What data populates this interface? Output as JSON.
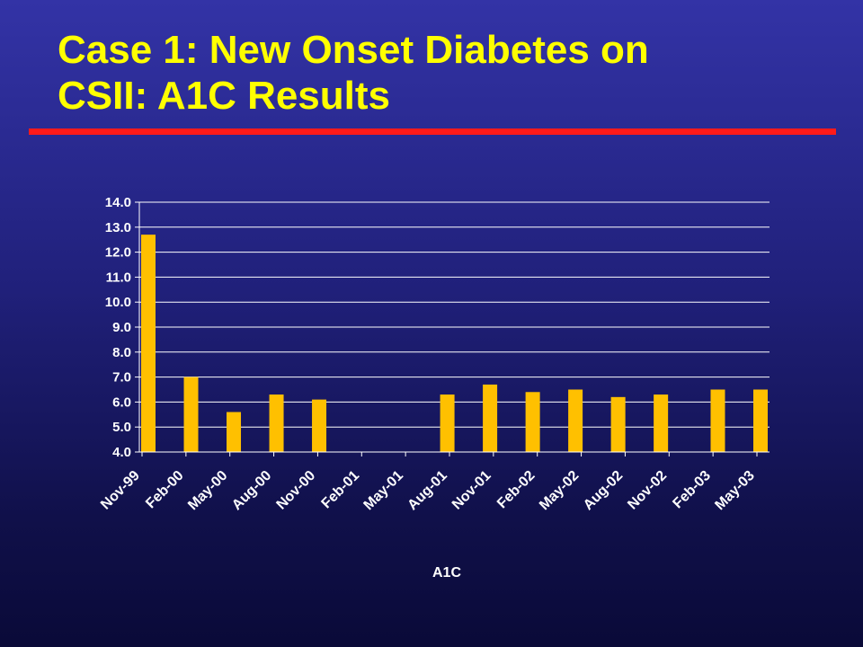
{
  "slide": {
    "title_line1": "Case 1: New Onset Diabetes on",
    "title_line2": "CSII: A1C Results"
  },
  "colors": {
    "title": "#ffff00",
    "rule": "#ff1a1a",
    "bar": "#ffc000",
    "grid": "#ffffff"
  },
  "chart_data": {
    "type": "bar",
    "categories": [
      "Nov-99",
      "Feb-00",
      "May-00",
      "Aug-00",
      "Nov-00",
      "Feb-01",
      "May-01",
      "Aug-01",
      "Nov-01",
      "Feb-02",
      "May-02",
      "Aug-02",
      "Nov-02",
      "Feb-03",
      "May-03"
    ],
    "series": [
      {
        "name": "A1C",
        "points": [
          {
            "x": "1999-11",
            "y": 12.7
          },
          {
            "x": "2000-02",
            "y": 7.0
          },
          {
            "x": "2000-05",
            "y": 5.6
          },
          {
            "x": "2000-08",
            "y": 6.3
          },
          {
            "x": "2000-11",
            "y": 6.1
          },
          {
            "x": "2001-08",
            "y": 6.3
          },
          {
            "x": "2001-11",
            "y": 6.7
          },
          {
            "x": "2002-02",
            "y": 6.4
          },
          {
            "x": "2002-05",
            "y": 6.5
          },
          {
            "x": "2002-08",
            "y": 6.2
          },
          {
            "x": "2002-11",
            "y": 6.3
          },
          {
            "x": "2003-03",
            "y": 6.5
          },
          {
            "x": "2003-06",
            "y": 6.5
          }
        ]
      }
    ],
    "x_axis": {
      "type": "date",
      "range": [
        "1999-11",
        "2003-06"
      ]
    },
    "y_ticks": [
      "14.0",
      "13.0",
      "12.0",
      "11.0",
      "10.0",
      "9.0",
      "8.0",
      "7.0",
      "6.0",
      "5.0",
      "4.0"
    ],
    "ylim": [
      4.0,
      14.0
    ],
    "grid": true,
    "legend_position": "bottom",
    "xlabel": "",
    "ylabel": ""
  }
}
